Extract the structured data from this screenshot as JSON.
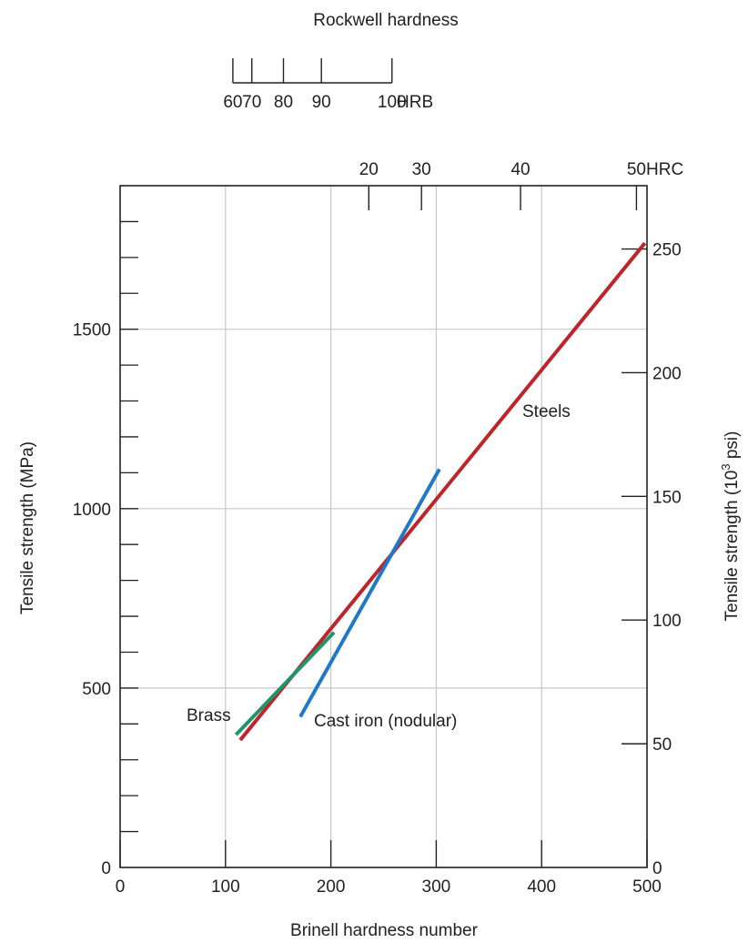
{
  "chart_data": {
    "type": "line",
    "title": "",
    "xlabel": "Brinell hardness number",
    "ylabel": "Tensile strength (MPa)",
    "y2label_main": "Tensile strength (10",
    "y2label_sup": "3",
    "y2label_end": " psi)",
    "xlim": [
      0,
      500
    ],
    "ylim": [
      0,
      1900
    ],
    "y2lim": [
      0,
      275.6
    ],
    "grid": true,
    "x_ticks": [
      0,
      100,
      200,
      300,
      400,
      500
    ],
    "x_tick_labels": [
      "0",
      "100",
      "200",
      "300",
      "400",
      "500"
    ],
    "y_ticks": [
      0,
      500,
      1000,
      1500
    ],
    "y_tick_labels": [
      "0",
      "500",
      "1000",
      "1500"
    ],
    "y2_ticks": [
      0,
      50,
      100,
      150,
      200,
      250
    ],
    "y2_tick_labels": [
      "0",
      "50",
      "100",
      "150",
      "200",
      "250"
    ],
    "hrc_axis": {
      "unit": "HRC",
      "ticks": [
        {
          "label": "20",
          "brinell": 236
        },
        {
          "label": "30",
          "brinell": 286
        },
        {
          "label": "40",
          "brinell": 380
        },
        {
          "label": "50",
          "brinell": 490
        }
      ]
    },
    "hrb_axis": {
      "title": "Rockwell hardness",
      "unit": "HRB",
      "ticks": [
        {
          "label": "60",
          "brinell": 107
        },
        {
          "label": "70",
          "brinell": 125
        },
        {
          "label": "80",
          "brinell": 155
        },
        {
          "label": "90",
          "brinell": 191
        },
        {
          "label": "100",
          "brinell": 258
        }
      ]
    },
    "series": [
      {
        "name": "Steels",
        "color": "#c0242b",
        "x": [
          114,
          498
        ],
        "y": [
          355,
          1740
        ]
      },
      {
        "name": "Brass",
        "color": "#21956a",
        "x": [
          110,
          203
        ],
        "y": [
          370,
          655
        ]
      },
      {
        "name": "Cast iron (nodular)",
        "color": "#1f78c8",
        "x": [
          171,
          303
        ],
        "y": [
          420,
          1110
        ]
      }
    ]
  }
}
